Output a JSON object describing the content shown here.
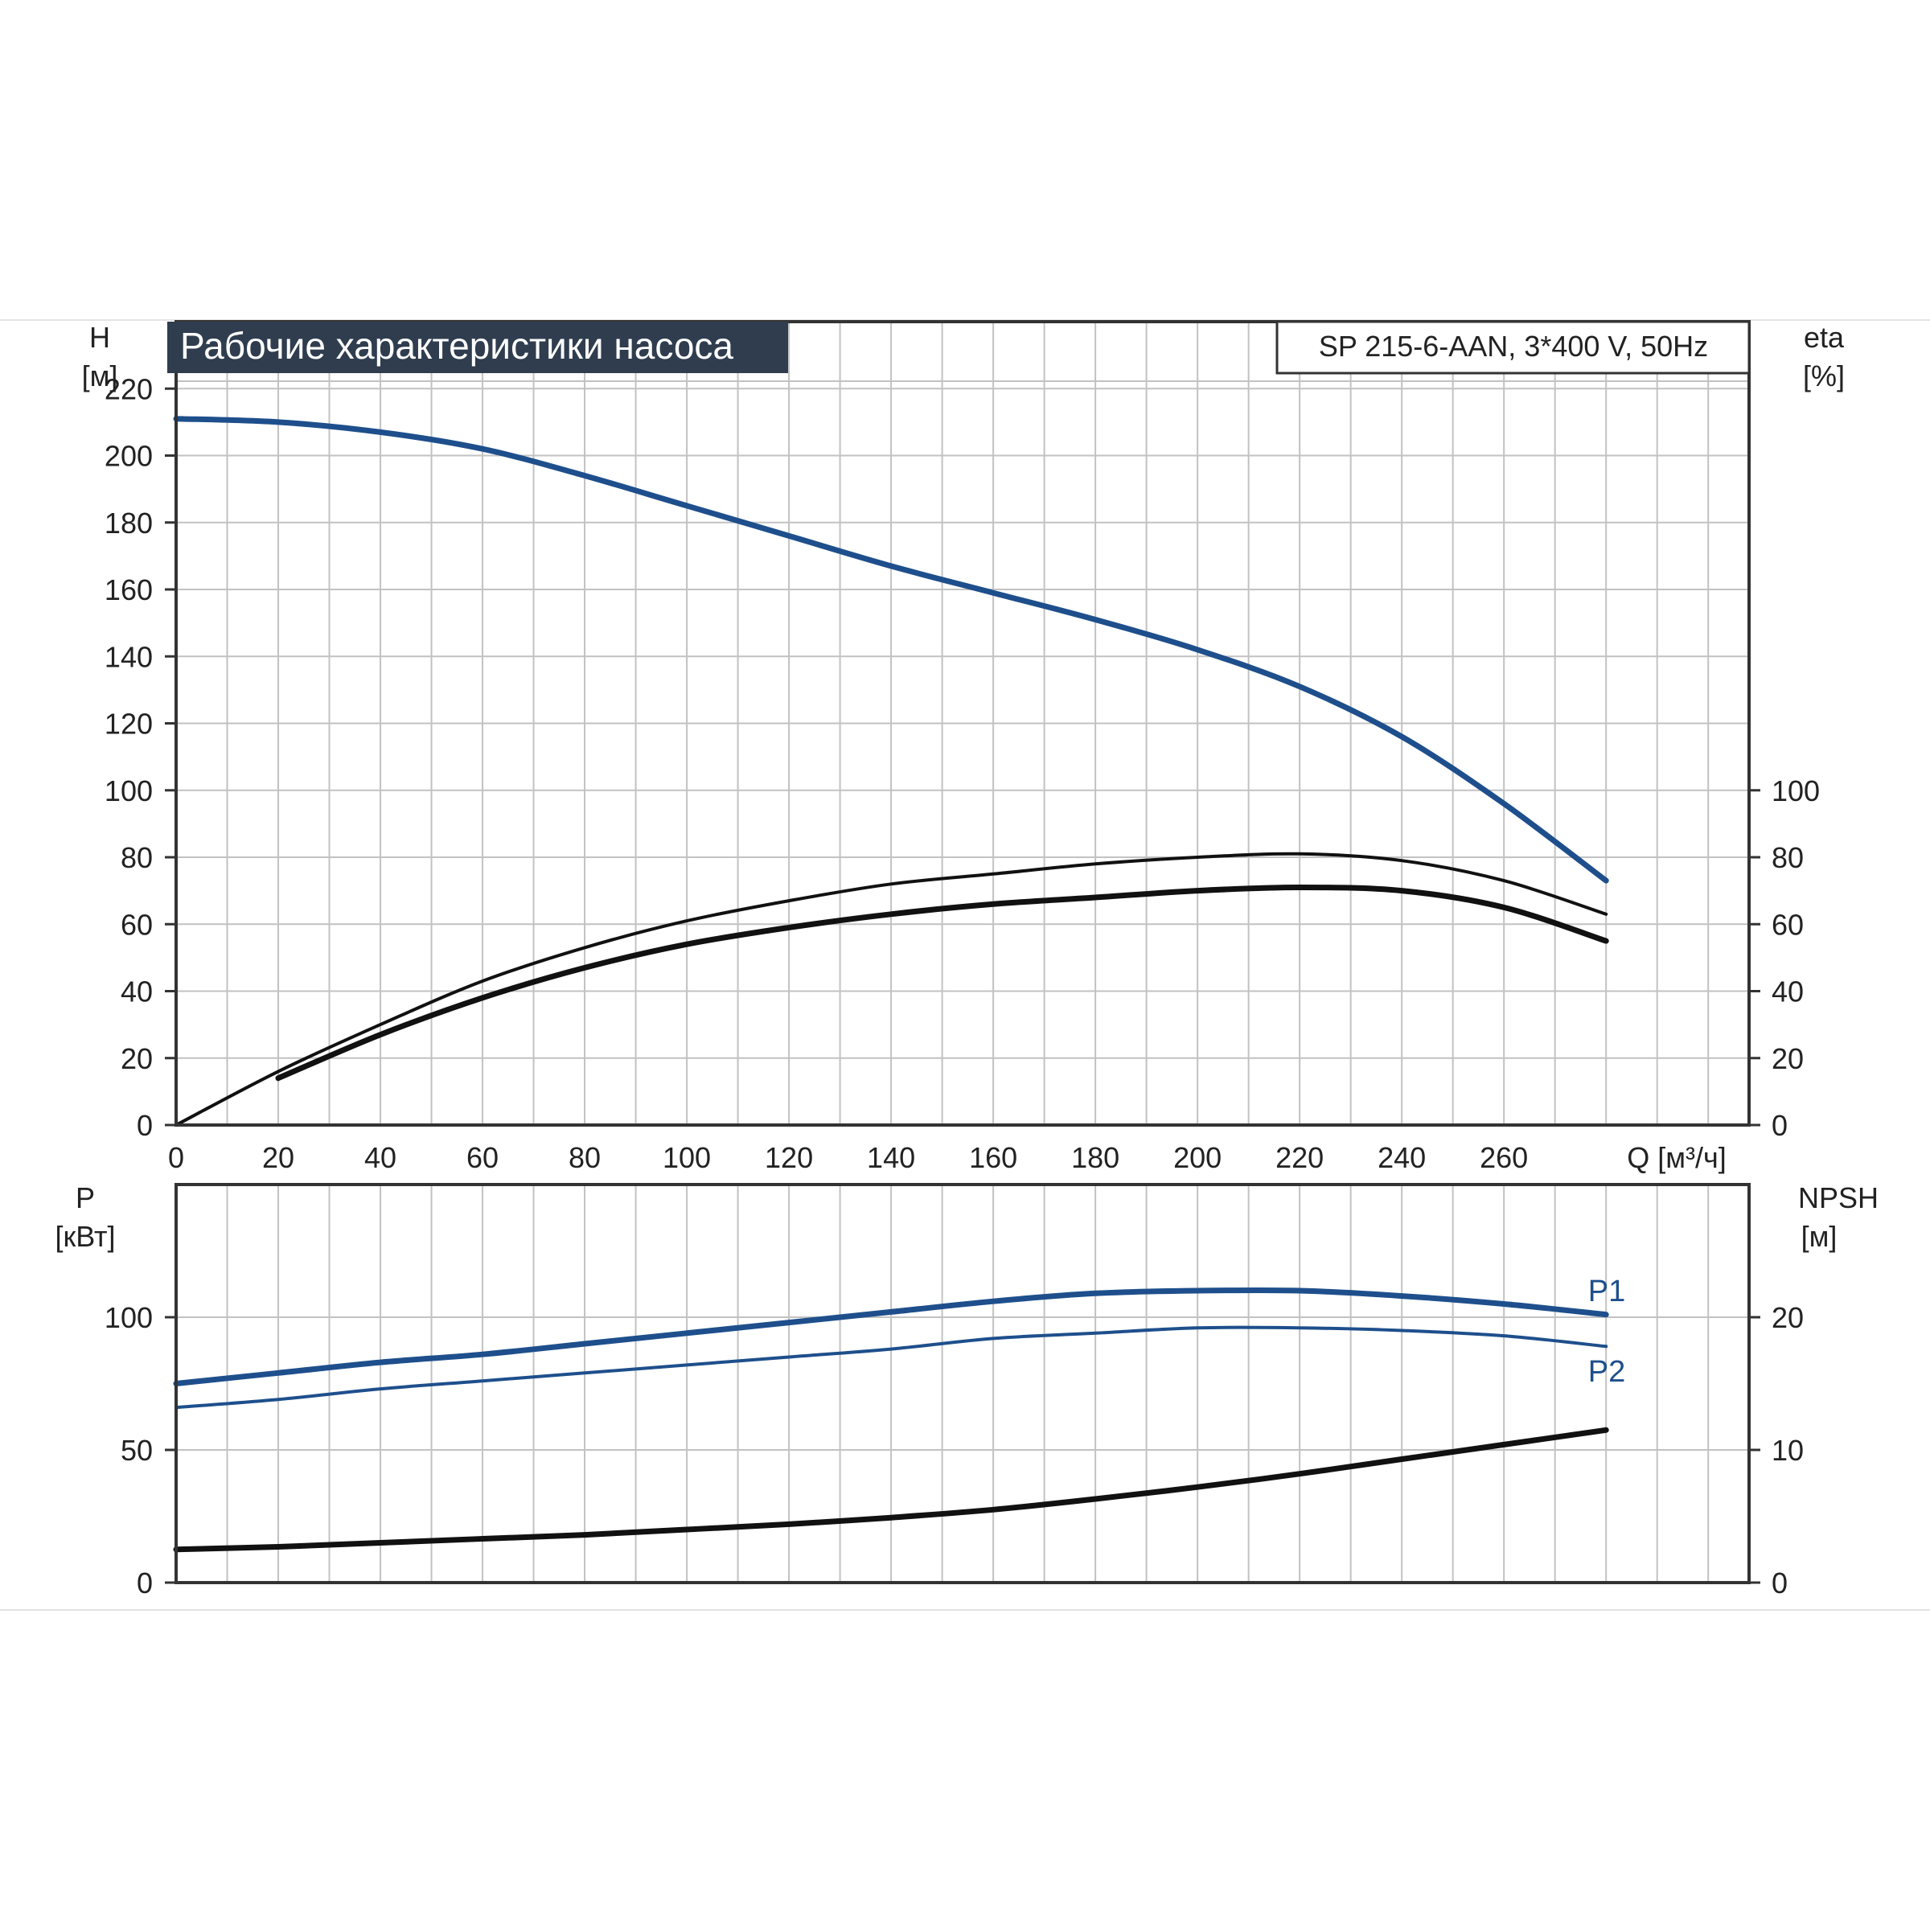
{
  "colors": {
    "curve_blue": "#1e4f8c",
    "curve_black": "#111111",
    "title_bg": "#2f3d4f",
    "title_text": "#ffffff",
    "grid": "#c2c2c2"
  },
  "header": {
    "title": "Рабочие характеристики насоса",
    "model": "SP 215-6-AAN, 3*400 V, 50Hz"
  },
  "chart_data": [
    {
      "type": "line",
      "title": "Рабочие характеристики насоса",
      "subtitle": "SP 215-6-AAN, 3*400 V, 50Hz",
      "x_axis": {
        "label": "Q [м³/ч]",
        "range": [
          0,
          308
        ],
        "ticks": [
          0,
          20,
          40,
          60,
          80,
          100,
          120,
          140,
          160,
          180,
          200,
          220,
          240,
          260
        ]
      },
      "y_axis_left": {
        "label_top": "H",
        "label_unit": "[м]",
        "range": [
          0,
          240
        ],
        "ticks": [
          0,
          20,
          40,
          60,
          80,
          100,
          120,
          140,
          160,
          180,
          200,
          220
        ]
      },
      "y_axis_right": {
        "label_top": "eta",
        "label_unit": "[%]",
        "range": [
          0,
          240
        ],
        "ticks": [
          0,
          20,
          40,
          60,
          80,
          100
        ]
      },
      "grid": true,
      "series": [
        {
          "axis": "left",
          "color": "#1e4f8c",
          "width": 7,
          "x": [
            0,
            20,
            40,
            60,
            80,
            100,
            120,
            140,
            160,
            180,
            200,
            220,
            240,
            260,
            280
          ],
          "y": [
            211,
            210,
            207,
            202,
            194,
            185,
            176,
            167,
            159,
            151,
            142,
            131,
            116,
            96,
            73
          ]
        },
        {
          "axis": "right",
          "color": "#111111",
          "width": 4,
          "x": [
            0,
            20,
            40,
            60,
            80,
            100,
            120,
            140,
            160,
            180,
            200,
            220,
            240,
            260,
            280
          ],
          "y": [
            0,
            16,
            30,
            43,
            53,
            61,
            67,
            72,
            75,
            78,
            80,
            81,
            79,
            73,
            63
          ]
        },
        {
          "axis": "right",
          "color": "#111111",
          "width": 7,
          "x": [
            20,
            40,
            60,
            80,
            100,
            120,
            140,
            160,
            180,
            200,
            220,
            240,
            260,
            280
          ],
          "y": [
            14,
            27,
            38,
            47,
            54,
            59,
            63,
            66,
            68,
            70,
            71,
            70,
            65,
            55
          ]
        }
      ]
    },
    {
      "type": "line",
      "x_axis": {
        "range": [
          0,
          308
        ],
        "ticks": [
          0,
          20,
          40,
          60,
          80,
          100,
          120,
          140,
          160,
          180,
          200,
          220,
          240,
          260
        ]
      },
      "y_axis_left": {
        "label_top": "P",
        "label_unit": "[кВт]",
        "range": [
          0,
          150
        ],
        "ticks": [
          0,
          50,
          100
        ]
      },
      "y_axis_right": {
        "label_top": "NPSH",
        "label_unit": "[м]",
        "range": [
          0,
          30
        ],
        "ticks": [
          0,
          10,
          20
        ]
      },
      "grid": true,
      "series": [
        {
          "name": "P1",
          "axis": "left",
          "color": "#1e4f8c",
          "width": 7,
          "x": [
            0,
            20,
            40,
            60,
            80,
            100,
            120,
            140,
            160,
            180,
            200,
            220,
            240,
            260,
            280
          ],
          "y": [
            75,
            79,
            83,
            86,
            90,
            94,
            98,
            102,
            106,
            109,
            110,
            110,
            108,
            105,
            101
          ]
        },
        {
          "name": "P2",
          "axis": "left",
          "color": "#1e4f8c",
          "width": 4,
          "x": [
            0,
            20,
            40,
            60,
            80,
            100,
            120,
            140,
            160,
            180,
            200,
            220,
            240,
            260,
            280
          ],
          "y": [
            66,
            69,
            73,
            76,
            79,
            82,
            85,
            88,
            92,
            94,
            96,
            96,
            95,
            93,
            89
          ]
        },
        {
          "axis": "right",
          "color": "#111111",
          "width": 7,
          "x": [
            0,
            20,
            40,
            60,
            80,
            100,
            120,
            140,
            160,
            180,
            200,
            220,
            240,
            260,
            280
          ],
          "y": [
            2.5,
            2.7,
            3.0,
            3.3,
            3.6,
            4.0,
            4.4,
            4.9,
            5.5,
            6.3,
            7.2,
            8.2,
            9.3,
            10.4,
            11.5
          ]
        }
      ]
    }
  ]
}
